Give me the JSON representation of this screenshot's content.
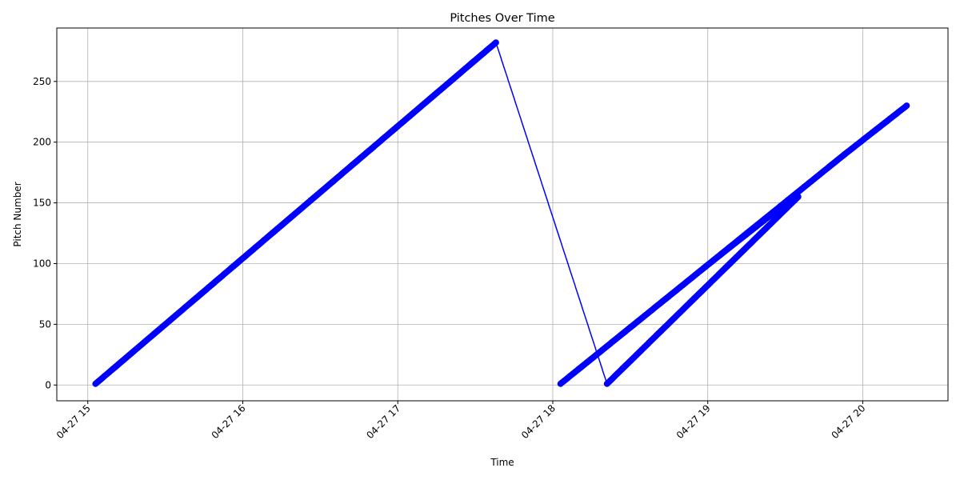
{
  "chart_data": {
    "type": "line",
    "title": "Pitches Over Time",
    "xlabel": "Time",
    "ylabel": "Pitch Number",
    "x_ticks": [
      "04-27 15",
      "04-27 16",
      "04-27 17",
      "04-27 18",
      "04-27 19",
      "04-27 20"
    ],
    "y_ticks": [
      0,
      50,
      100,
      150,
      200,
      250
    ],
    "xlim": [
      "04-27 14:48",
      "04-27 20:33"
    ],
    "ylim": [
      -13,
      294
    ],
    "grid": true,
    "line_color": "#0000ff",
    "marker": "circle",
    "series": [
      {
        "segments": [
          {
            "start": "04-27 15:03",
            "end": "04-27 17:38",
            "from": 1,
            "to": 282
          },
          {
            "start": "04-27 17:38",
            "end": "04-27 18:21",
            "from": 282,
            "to": 1
          },
          {
            "start": "04-27 18:21",
            "end": "04-27 19:35",
            "from": 1,
            "to": 155
          },
          {
            "start": "04-27 19:35",
            "end": "04-27 18:03",
            "from": 155,
            "to": 1
          },
          {
            "start": "04-27 18:03",
            "end": "04-27 19:53",
            "from": 1,
            "to": 190
          },
          {
            "start": "04-27 19:53",
            "end": "04-27 20:17",
            "from": 190,
            "to": 230
          }
        ]
      }
    ]
  }
}
